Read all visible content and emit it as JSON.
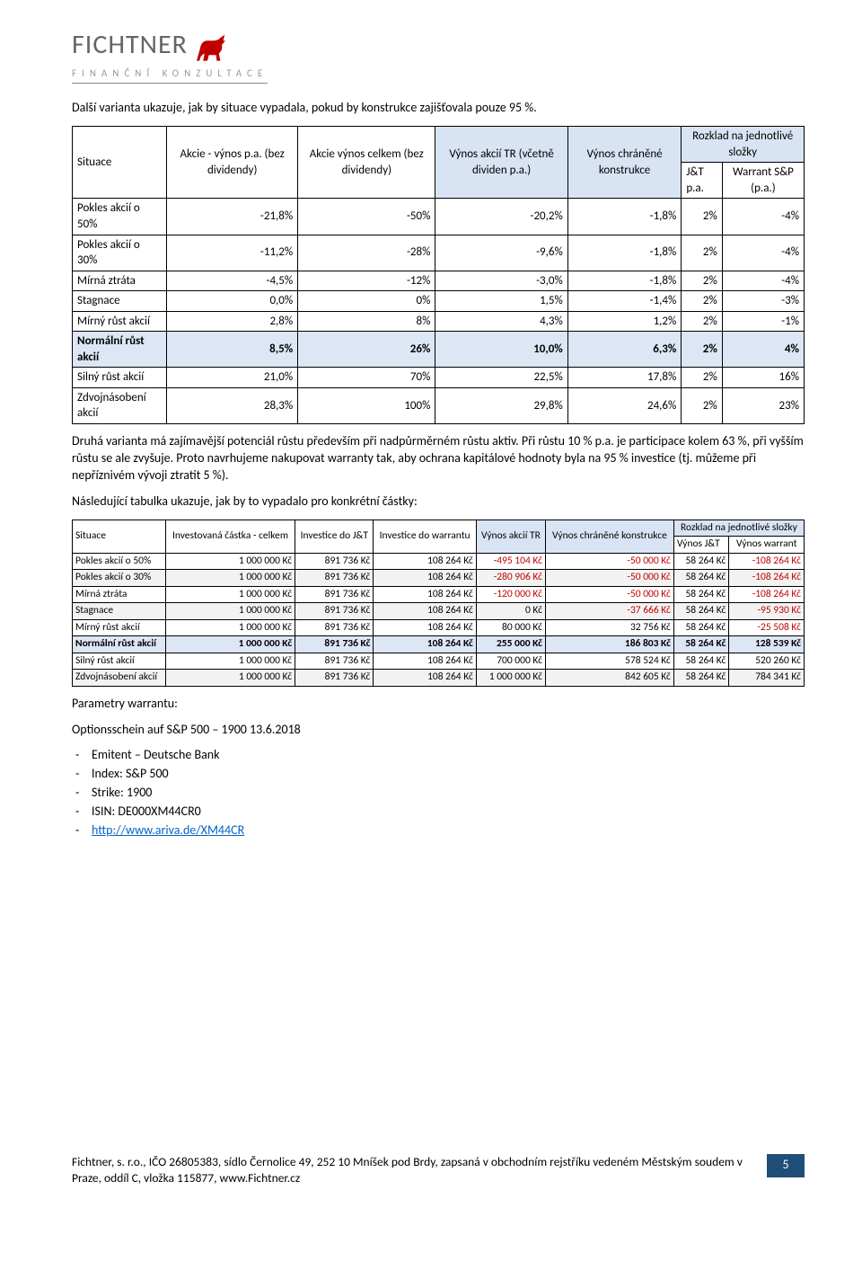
{
  "logo": {
    "name": "FICHTNER",
    "sub": "FINANČNÍ KONZULTACE"
  },
  "intro": "Další varianta ukazuje, jak by situace vypadala, pokud by konstrukce zajišťovala pouze 95 %.",
  "t1": {
    "headers": {
      "situace": "Situace",
      "h1": "Akcie - výnos p.a. (bez dividendy)",
      "h2": "Akcie výnos celkem (bez dividendy)",
      "h3": "Výnos akcií TR (včetně dividen p.a.)",
      "h4": "Výnos chráněné konstrukce",
      "rozklad": "Rozklad na jednotlivé složky",
      "h5": "J&T p.a.",
      "h6": "Warrant S&P (p.a.)"
    },
    "rows": [
      {
        "s": "Pokles akcií o 50%",
        "c1": "-21,8%",
        "c2": "-50%",
        "c3": "-20,2%",
        "c4": "-1,8%",
        "c5": "2%",
        "c6": "-4%",
        "hl": false
      },
      {
        "s": "Pokles akcií o 30%",
        "c1": "-11,2%",
        "c2": "-28%",
        "c3": "-9,6%",
        "c4": "-1,8%",
        "c5": "2%",
        "c6": "-4%",
        "hl": false
      },
      {
        "s": "Mírná ztráta",
        "c1": "-4,5%",
        "c2": "-12%",
        "c3": "-3,0%",
        "c4": "-1,8%",
        "c5": "2%",
        "c6": "-4%",
        "hl": false
      },
      {
        "s": "Stagnace",
        "c1": "0,0%",
        "c2": "0%",
        "c3": "1,5%",
        "c4": "-1,4%",
        "c5": "2%",
        "c6": "-3%",
        "hl": false
      },
      {
        "s": "Mírný růst akcií",
        "c1": "2,8%",
        "c2": "8%",
        "c3": "4,3%",
        "c4": "1,2%",
        "c5": "2%",
        "c6": "-1%",
        "hl": false
      },
      {
        "s": "Normální růst akcií",
        "c1": "8,5%",
        "c2": "26%",
        "c3": "10,0%",
        "c4": "6,3%",
        "c5": "2%",
        "c6": "4%",
        "hl": true
      },
      {
        "s": "Silný růst akcií",
        "c1": "21,0%",
        "c2": "70%",
        "c3": "22,5%",
        "c4": "17,8%",
        "c5": "2%",
        "c6": "16%",
        "hl": false
      },
      {
        "s": "Zdvojnásobení akcií",
        "c1": "28,3%",
        "c2": "100%",
        "c3": "29,8%",
        "c4": "24,6%",
        "c5": "2%",
        "c6": "23%",
        "hl": false
      }
    ]
  },
  "para2": "Druhá varianta má zajímavější potenciál růstu především při nadpůrměrném růstu aktiv. Při růstu 10 % p.a. je participace kolem 63 %, při vyšším růstu se ale zvyšuje. Proto navrhujeme nakupovat warranty tak, aby ochrana kapitálové hodnoty byla na 95 % investice (tj. můžeme při nepříznivém vývoji ztratit 5 %).",
  "para3": "Následující tabulka ukazuje, jak by to vypadalo pro konkrétní částky:",
  "t2": {
    "headers": {
      "situace": "Situace",
      "h1": "Investovaná částka - celkem",
      "h2": "Investice do J&T",
      "h3": "Investice do warrantu",
      "h4": "Výnos akcií TR",
      "h5": "Výnos chráněné konstrukce",
      "rozklad": "Rozklad na jednotlivé složky",
      "h6": "Výnos J&T",
      "h7": "Výnos warrant"
    },
    "rows": [
      {
        "s": "Pokles akcií o 50%",
        "c1": "1 000 000 Kč",
        "c2": "891 736 Kč",
        "c3": "108 264 Kč",
        "c4": "-495 104 Kč",
        "c5": "-50 000 Kč",
        "c6": "58 264 Kč",
        "c7": "-108 264 Kč",
        "n4": true,
        "n5": true,
        "n7": true,
        "hl": false,
        "alt": false
      },
      {
        "s": "Pokles akcií o 30%",
        "c1": "1 000 000 Kč",
        "c2": "891 736 Kč",
        "c3": "108 264 Kč",
        "c4": "-280 906 Kč",
        "c5": "-50 000 Kč",
        "c6": "58 264 Kč",
        "c7": "-108 264 Kč",
        "n4": true,
        "n5": true,
        "n7": true,
        "hl": false,
        "alt": true
      },
      {
        "s": "Mírná ztráta",
        "c1": "1 000 000 Kč",
        "c2": "891 736 Kč",
        "c3": "108 264 Kč",
        "c4": "-120 000 Kč",
        "c5": "-50 000 Kč",
        "c6": "58 264 Kč",
        "c7": "-108 264 Kč",
        "n4": true,
        "n5": true,
        "n7": true,
        "hl": false,
        "alt": false
      },
      {
        "s": "Stagnace",
        "c1": "1 000 000 Kč",
        "c2": "891 736 Kč",
        "c3": "108 264 Kč",
        "c4": "0 Kč",
        "c5": "-37 666 Kč",
        "c6": "58 264 Kč",
        "c7": "-95 930 Kč",
        "n4": false,
        "n5": true,
        "n7": true,
        "hl": false,
        "alt": true
      },
      {
        "s": "Mírný růst akcií",
        "c1": "1 000 000 Kč",
        "c2": "891 736 Kč",
        "c3": "108 264 Kč",
        "c4": "80 000 Kč",
        "c5": "32 756 Kč",
        "c6": "58 264 Kč",
        "c7": "-25 508 Kč",
        "n4": false,
        "n5": false,
        "n7": true,
        "hl": false,
        "alt": false
      },
      {
        "s": "Normální růst akcií",
        "c1": "1 000 000 Kč",
        "c2": "891 736 Kč",
        "c3": "108 264 Kč",
        "c4": "255 000 Kč",
        "c5": "186 803 Kč",
        "c6": "58 264 Kč",
        "c7": "128 539 Kč",
        "n4": false,
        "n5": false,
        "n7": false,
        "hl": true,
        "alt": false
      },
      {
        "s": "Silný růst akcií",
        "c1": "1 000 000 Kč",
        "c2": "891 736 Kč",
        "c3": "108 264 Kč",
        "c4": "700 000 Kč",
        "c5": "578 524 Kč",
        "c6": "58 264 Kč",
        "c7": "520 260 Kč",
        "n4": false,
        "n5": false,
        "n7": false,
        "hl": false,
        "alt": false
      },
      {
        "s": "Zdvojnásobení akcií",
        "c1": "1 000 000 Kč",
        "c2": "891 736 Kč",
        "c3": "108 264 Kč",
        "c4": "1 000 000 Kč",
        "c5": "842 605 Kč",
        "c6": "58 264 Kč",
        "c7": "784 341 Kč",
        "n4": false,
        "n5": false,
        "n7": false,
        "hl": false,
        "alt": true
      }
    ]
  },
  "param_title": "Parametry warrantu:",
  "param_line": "Optionsschein auf S&P 500 – 1900 13.6.2018",
  "bullets": [
    {
      "t": "Emitent – Deutsche Bank",
      "link": false
    },
    {
      "t": "Index: S&P 500",
      "link": false
    },
    {
      "t": "Strike: 1900",
      "link": false
    },
    {
      "t": "ISIN: DE000XM44CR0",
      "link": false
    },
    {
      "t": "http://www.ariva.de/XM44CR",
      "link": true
    }
  ],
  "footer": {
    "text": "Fichtner, s. r.o., IČO 26805383, sídlo Černolice 49, 252 10 Mníšek pod Brdy, zapsaná v obchodním rejstříku vedeném Městským soudem v Praze, oddíl C, vložka 115877, www.Fichtner.cz",
    "page": "5"
  },
  "colors": {
    "hl_bg": "#dce6f5",
    "neg": "#c00000",
    "page_badge": "#1f4e79",
    "link": "#0563c1",
    "bull": "#c00000",
    "logo_gray": "#666666"
  }
}
